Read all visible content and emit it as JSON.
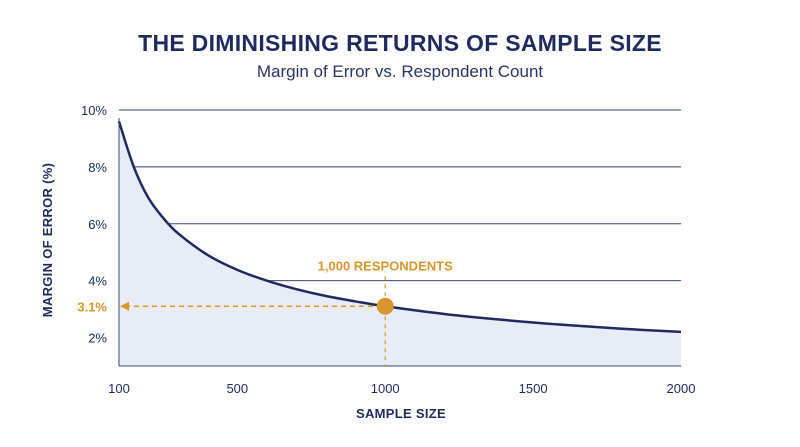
{
  "header": {
    "title": "THE DIMINISHING RETURNS OF SAMPLE SIZE",
    "subtitle": "Margin of Error vs. Respondent Count"
  },
  "chart_data": {
    "type": "area",
    "title": "THE DIMINISHING RETURNS OF SAMPLE SIZE",
    "subtitle": "Margin of Error vs. Respondent Count",
    "xlabel": "SAMPLE SIZE",
    "ylabel": "MARGIN OF ERROR (%)",
    "xlim": [
      100,
      2000
    ],
    "ylim": [
      1.0,
      10.0
    ],
    "x_ticks": [
      100,
      500,
      1000,
      1500,
      2000
    ],
    "x_tick_labels": [
      "100",
      "500",
      "1000",
      "1500",
      "2000"
    ],
    "y_ticks": [
      2,
      4,
      6,
      8,
      10
    ],
    "y_tick_labels": [
      "2%",
      "4%",
      "6%",
      "8%",
      "10%"
    ],
    "grid": "horizontal",
    "series": [
      {
        "x": [
          100,
          150,
          200,
          250,
          300,
          400,
          500,
          600,
          700,
          800,
          900,
          1000,
          1200,
          1400,
          1600,
          1800,
          2000
        ],
        "y": [
          9.6,
          8.0,
          6.9,
          6.2,
          5.66,
          4.9,
          4.38,
          4.0,
          3.7,
          3.46,
          3.27,
          3.1,
          2.83,
          2.62,
          2.45,
          2.31,
          2.2
        ]
      }
    ],
    "annotation": {
      "label": "1,000 RESPONDENTS",
      "x": 1000,
      "y": 3.1,
      "y_label": "3.1%"
    },
    "colors": {
      "line": "#1f2b5e",
      "fill": "#e8ecf7",
      "grid": "#3b4577",
      "accent": "#d8962e"
    }
  }
}
